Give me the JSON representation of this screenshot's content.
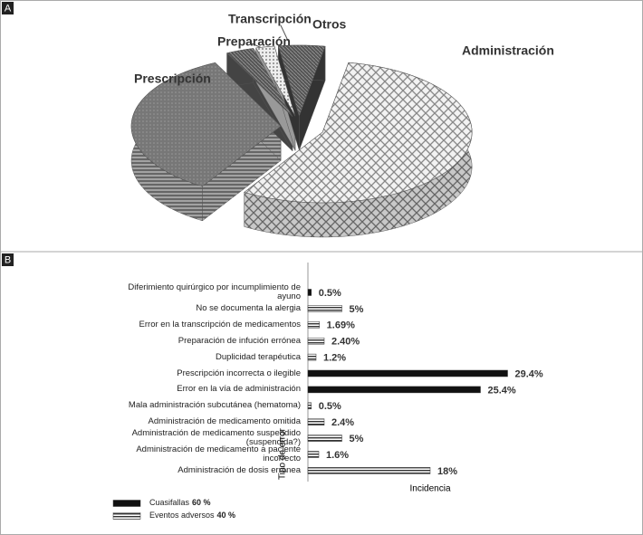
{
  "chart_data": [
    {
      "type": "pie",
      "panel": "A",
      "categories": [
        "Administración",
        "Prescripción",
        "Preparación",
        "Transcripción",
        "Otros"
      ],
      "values": [
        56,
        34,
        3,
        2,
        5
      ]
    },
    {
      "type": "barh",
      "panel": "B",
      "categories": [
        "Diferimiento quirúrgico por incumplimiento de ayuno",
        "No se documenta la alergia",
        "Error en la transcripción de medicamentos",
        "Preparación de infución errónea",
        "Duplicidad terapéutica",
        "Prescripción incorrecta o ilegible",
        "Error en la vía de administración",
        "Mala administración subcutánea (hematoma)",
        "Administración de medicamento omitida",
        "Administración de medicamento suspendido (suspendida?)",
        "Administración de medicamento a paciente incorrecto",
        "Administración de dosis errónea"
      ],
      "series": [
        {
          "name": "Cuasifallas",
          "share": "60 %",
          "color": "#111111",
          "values": [
            0.5,
            null,
            null,
            null,
            null,
            29.4,
            25.4,
            null,
            null,
            null,
            null,
            null
          ],
          "value_labels": [
            "0.5%",
            null,
            null,
            null,
            null,
            "29.4%",
            "25.4%",
            null,
            null,
            null,
            null,
            null
          ]
        },
        {
          "name": "Eventos adversos",
          "share": "40 %",
          "color": "striped",
          "values": [
            null,
            5,
            1.69,
            2.4,
            1.2,
            null,
            null,
            0.5,
            2.4,
            5,
            1.6,
            18
          ],
          "value_labels": [
            null,
            "5%",
            "1.69%",
            "2.40%",
            "1.2%",
            null,
            null,
            "0.5%",
            "2.4%",
            "5%",
            "1.6%",
            "18%"
          ]
        }
      ],
      "xlabel": "Incidencia",
      "ylabel": "Tipo de error",
      "xlim": [
        0,
        30
      ]
    }
  ]
}
